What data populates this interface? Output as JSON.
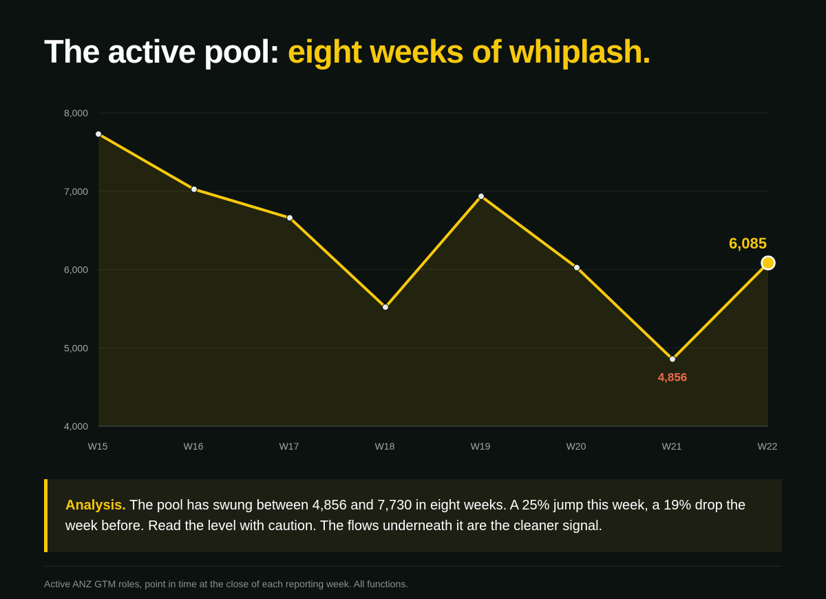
{
  "title": {
    "lead": "The active pool: ",
    "highlight": "eight weeks of whiplash."
  },
  "chart_data": {
    "type": "line",
    "title": "",
    "xlabel": "",
    "ylabel": "",
    "categories": [
      "W15",
      "W16",
      "W17",
      "W18",
      "W19",
      "W20",
      "W21",
      "W22"
    ],
    "series": [
      {
        "values": [
          7730,
          7025,
          6660,
          5520,
          6935,
          6025,
          4856,
          6085
        ]
      }
    ],
    "ylim": [
      4000,
      8000
    ],
    "yticks": [
      4000,
      5000,
      6000,
      7000,
      8000
    ],
    "ytick_labels": [
      "4,000",
      "5,000",
      "6,000",
      "7,000",
      "8,000"
    ],
    "grid": true,
    "area_fill": true,
    "annotations": [
      {
        "category": "W22",
        "value": 6085,
        "label": "6,085",
        "color": "#f7c90c",
        "emphasis": "latest"
      },
      {
        "category": "W21",
        "value": 4856,
        "label": "4,856",
        "color": "#ee6a4f",
        "emphasis": "low"
      }
    ],
    "colors": {
      "line": "#f7c90c",
      "marker": "#e9ecea",
      "grid": "#1c2421",
      "tick_text": "#a2a8a4"
    }
  },
  "analysis": {
    "lead": "Analysis.",
    "text": " The pool has swung between 4,856 and 7,730 in eight weeks. A 25% jump this week, a 19% drop the week before. Read the level with caution. The flows underneath it are the cleaner signal."
  },
  "footnote": "Active ANZ GTM roles, point in time at the close of each reporting week. All functions."
}
